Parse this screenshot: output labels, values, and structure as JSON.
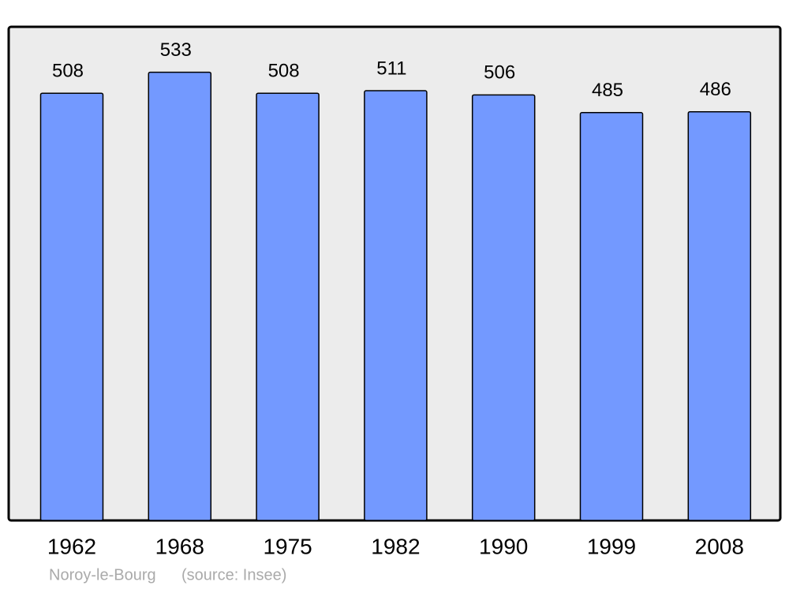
{
  "chart_data": {
    "type": "bar",
    "categories": [
      "1962",
      "1968",
      "1975",
      "1982",
      "1990",
      "1999",
      "2008"
    ],
    "values": [
      508,
      533,
      508,
      511,
      506,
      485,
      486
    ],
    "color": "#7399ff",
    "ylim": [
      0,
      587
    ],
    "footer": {
      "place": "Noroy-le-Bourg",
      "source": "(source: Insee)"
    }
  }
}
